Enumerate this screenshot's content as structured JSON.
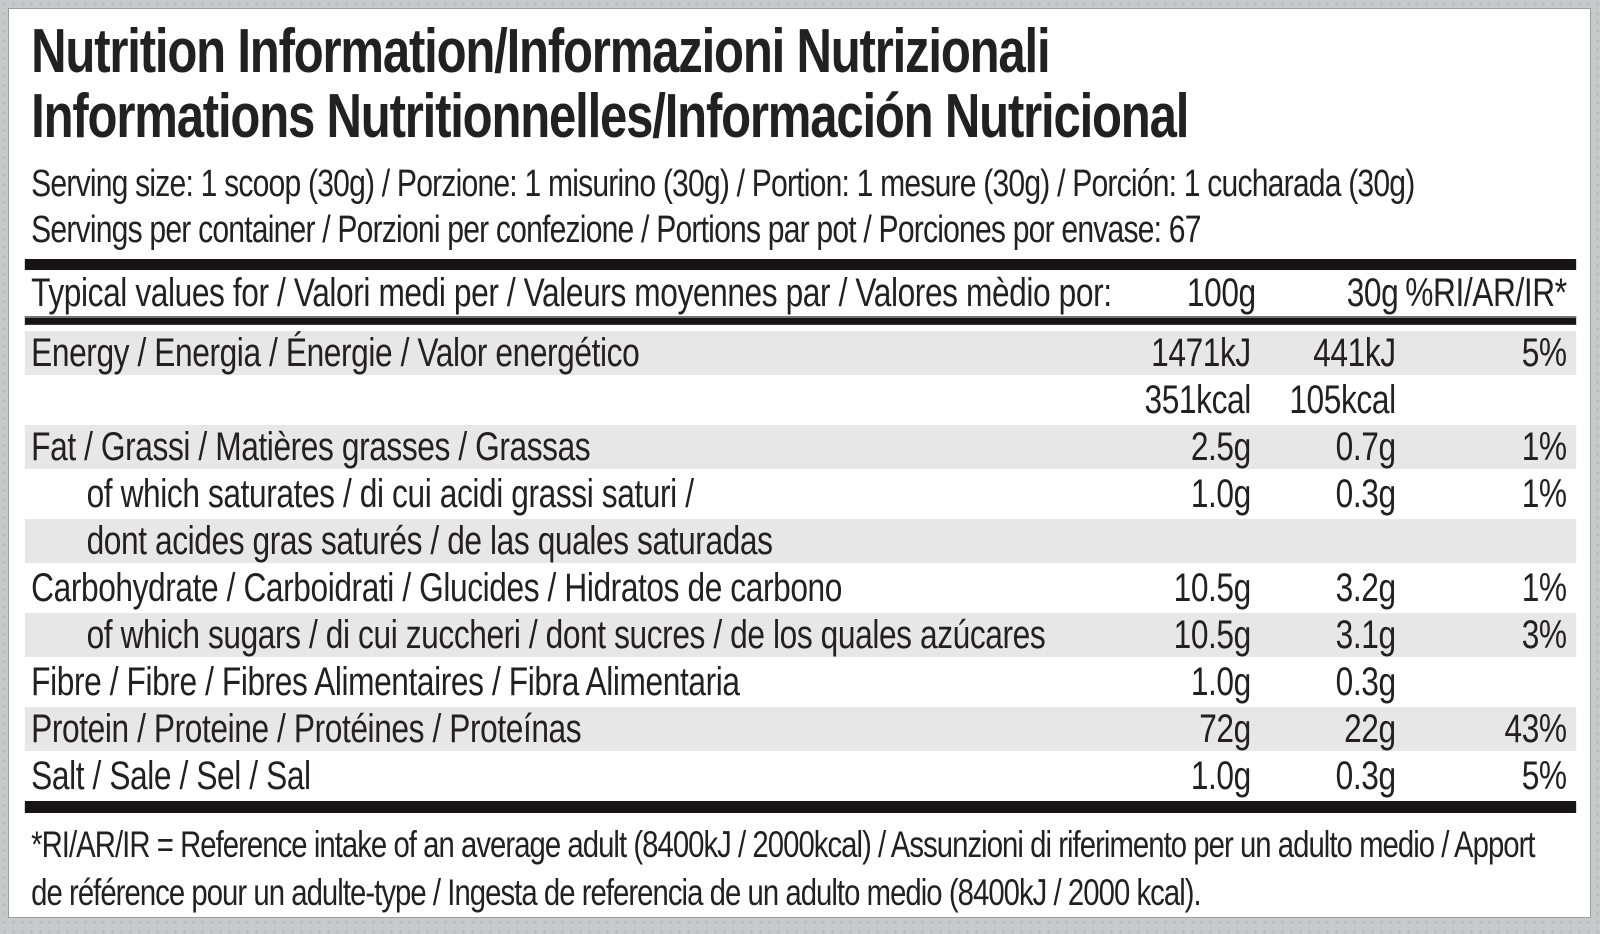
{
  "label": {
    "title_line1": "Nutrition Information/Informazioni Nutrizionali",
    "title_line2": "Informations Nutritionnelles/Información Nutricional",
    "serving_size": "Serving size: 1 scoop (30g) / Porzione: 1 misurino (30g) / Portion: 1 mesure (30g) / Porción: 1 cucharada (30g)",
    "servings_per_container": "Servings per container / Porzioni per confezione / Portions par pot / Porciones por envase: 67",
    "table": {
      "header": {
        "label": "Typical values for / Valori medi per / Valeurs moyennes par / Valores mèdio por:",
        "col_100g": "100g",
        "col_30g": "30g",
        "col_ri": "%RI/AR/IR*"
      },
      "rows": [
        {
          "label": "Energy / Energia / Énergie / Valor energético",
          "per_100g": "1471kJ",
          "per_30g": "441kJ",
          "ri": "5%"
        },
        {
          "label": "",
          "per_100g": "351kcal",
          "per_30g": "105kcal",
          "ri": ""
        },
        {
          "label": "Fat / Grassi / Matières grasses / Grassas",
          "per_100g": "2.5g",
          "per_30g": "0.7g",
          "ri": "1%"
        },
        {
          "label": "of which saturates / di cui acidi grassi saturi /",
          "per_100g": "1.0g",
          "per_30g": "0.3g",
          "ri": "1%"
        },
        {
          "label": "dont acides gras saturés / de las quales saturadas",
          "per_100g": "",
          "per_30g": "",
          "ri": ""
        },
        {
          "label": "Carbohydrate / Carboidrati / Glucides / Hidratos de carbono",
          "per_100g": "10.5g",
          "per_30g": "3.2g",
          "ri": "1%"
        },
        {
          "label": "of which sugars / di cui zuccheri / dont sucres / de los quales azúcares",
          "per_100g": "10.5g",
          "per_30g": "3.1g",
          "ri": "3%"
        },
        {
          "label": "Fibre / Fibre / Fibres Alimentaires / Fibra Alimentaria",
          "per_100g": "1.0g",
          "per_30g": "0.3g",
          "ri": ""
        },
        {
          "label": "Protein / Proteine / Protéines / Proteínas",
          "per_100g": "72g",
          "per_30g": "22g",
          "ri": "43%"
        },
        {
          "label": "Salt / Sale / Sel / Sal",
          "per_100g": "1.0g",
          "per_30g": "0.3g",
          "ri": "5%"
        }
      ]
    },
    "footnote": "*RI/AR/IR = Reference intake of an average adult (8400kJ / 2000kcal) / Assunzioni di riferimento per un adulto medio / Apport de référence pour un adulte-type / Ingesta de referencia de un adulto medio (8400kJ / 2000 kcal).",
    "colors": {
      "text": "#232021",
      "row_shade": "#e7e7e7",
      "rule": "#181415",
      "backdrop": "#c6caca",
      "card": "#ffffff"
    }
  }
}
